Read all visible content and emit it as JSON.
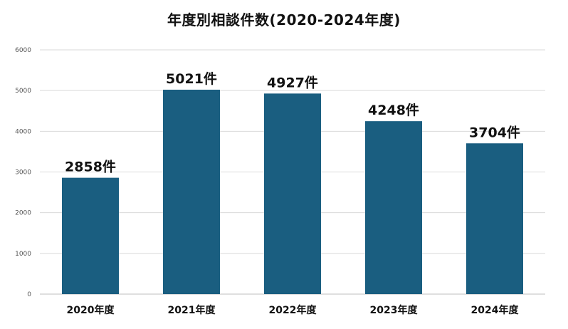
{
  "chart_data": {
    "type": "bar",
    "title": "年度別相談件数(2020-2024年度)",
    "categories": [
      "2020年度",
      "2021年度",
      "2022年度",
      "2023年度",
      "2024年度"
    ],
    "values": [
      2858,
      5021,
      4927,
      4248,
      3704
    ],
    "data_labels": [
      "2858件",
      "5021件",
      "4927件",
      "4248件",
      "3704件"
    ],
    "ylim": [
      0,
      6000
    ],
    "yticks": [
      0,
      1000,
      2000,
      3000,
      4000,
      5000,
      6000
    ],
    "xlabel": "",
    "ylabel": "",
    "grid": true,
    "legend": "none",
    "colors": {
      "bar": "#1a5e80",
      "grid": "#d9d9d9",
      "axis": "#bfbfbf"
    }
  }
}
